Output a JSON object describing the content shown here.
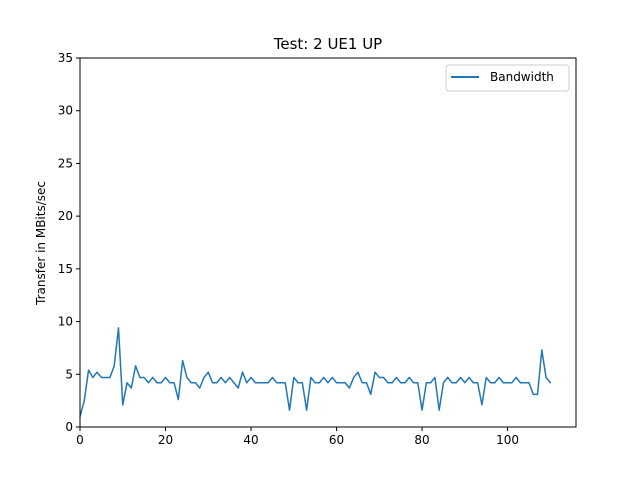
{
  "chart_data": {
    "type": "line",
    "title": "Test: 2 UE1 UP",
    "xlabel": "",
    "ylabel": "Transfer in MBits/sec",
    "xlim": [
      0,
      116
    ],
    "ylim": [
      0,
      35
    ],
    "xticks": [
      0,
      20,
      40,
      60,
      80,
      100
    ],
    "yticks": [
      0,
      5,
      10,
      15,
      20,
      25,
      30,
      35
    ],
    "grid": false,
    "legend_position": "top-right",
    "series": [
      {
        "name": "Bandwidth",
        "color": "#1f77b4",
        "x": [
          0,
          1,
          2,
          3,
          4,
          5,
          6,
          7,
          8,
          9,
          10,
          11,
          12,
          13,
          14,
          15,
          16,
          17,
          18,
          19,
          20,
          21,
          22,
          23,
          24,
          25,
          26,
          27,
          28,
          29,
          30,
          31,
          32,
          33,
          34,
          35,
          36,
          37,
          38,
          39,
          40,
          41,
          42,
          43,
          44,
          45,
          46,
          47,
          48,
          49,
          50,
          51,
          52,
          53,
          54,
          55,
          56,
          57,
          58,
          59,
          60,
          61,
          62,
          63,
          64,
          65,
          66,
          67,
          68,
          69,
          70,
          71,
          72,
          73,
          74,
          75,
          76,
          77,
          78,
          79,
          80,
          81,
          82,
          83,
          84,
          85,
          86,
          87,
          88,
          89,
          90,
          91,
          92,
          93,
          94,
          95,
          96,
          97,
          98,
          99,
          100,
          101,
          102,
          103,
          104,
          105,
          106,
          107,
          108,
          109,
          110
        ],
        "values": [
          1.0,
          2.5,
          5.4,
          4.7,
          5.2,
          4.7,
          4.7,
          4.7,
          5.8,
          9.4,
          2.1,
          4.2,
          3.7,
          5.8,
          4.7,
          4.7,
          4.2,
          4.7,
          4.2,
          4.2,
          4.7,
          4.2,
          4.2,
          2.6,
          6.3,
          4.7,
          4.2,
          4.2,
          3.7,
          4.7,
          5.2,
          4.2,
          4.2,
          4.7,
          4.2,
          4.7,
          4.2,
          3.7,
          5.2,
          4.2,
          4.7,
          4.2,
          4.2,
          4.2,
          4.2,
          4.7,
          4.2,
          4.2,
          4.2,
          1.6,
          4.7,
          4.2,
          4.2,
          1.6,
          4.7,
          4.2,
          4.2,
          4.7,
          4.2,
          4.7,
          4.2,
          4.2,
          4.2,
          3.7,
          4.7,
          5.2,
          4.2,
          4.2,
          3.1,
          5.2,
          4.7,
          4.7,
          4.2,
          4.2,
          4.7,
          4.2,
          4.2,
          4.7,
          4.2,
          4.2,
          1.6,
          4.2,
          4.2,
          4.7,
          1.6,
          4.2,
          4.7,
          4.2,
          4.2,
          4.7,
          4.2,
          4.7,
          4.2,
          4.2,
          2.1,
          4.7,
          4.2,
          4.2,
          4.7,
          4.2,
          4.2,
          4.2,
          4.7,
          4.2,
          4.2,
          4.2,
          3.1,
          3.1,
          7.3,
          4.7,
          4.2
        ]
      }
    ]
  }
}
